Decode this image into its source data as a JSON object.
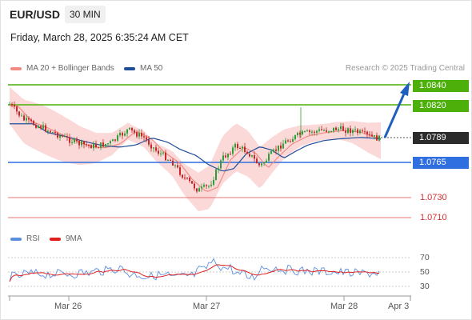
{
  "header": {
    "symbol": "EUR/USD",
    "timeframe": "30 MIN",
    "datetime": "Friday, March 28, 2025 6:35:24 AM CET"
  },
  "legend": {
    "ma20_label": "MA 20 + Bollinger Bands",
    "ma20_color": "#f28b82",
    "ma50_label": "MA 50",
    "ma50_color": "#1f4e99",
    "credit": "Research © 2025 Trading Central"
  },
  "levels": [
    {
      "value": "1.0840",
      "style": "resistance",
      "color": "#4caf0a"
    },
    {
      "value": "1.0820",
      "style": "resistance",
      "color": "#4caf0a"
    },
    {
      "value": "1.0789",
      "style": "current",
      "color": "#2b2b2b"
    },
    {
      "value": "1.0765",
      "style": "pivot",
      "color": "#2f6fe0"
    },
    {
      "value": "1.0730",
      "style": "support",
      "color": "#e04848"
    },
    {
      "value": "1.0710",
      "style": "support",
      "color": "#e04848"
    }
  ],
  "oscillator": {
    "rsi_label": "RSI",
    "rsi_color": "#5b8fe0",
    "ma_label": "9MA",
    "ma_color": "#e02020",
    "ticks": [
      "70",
      "50",
      "30"
    ]
  },
  "x_axis": {
    "labels": [
      "Mar 26",
      "Mar 27",
      "Mar 28",
      "Apr 3"
    ]
  },
  "colors": {
    "up_candle": "#2e9e3a",
    "down_candle": "#c62828",
    "band_fill": "#fbd9d9",
    "arrow": "#1f5fbf"
  }
}
